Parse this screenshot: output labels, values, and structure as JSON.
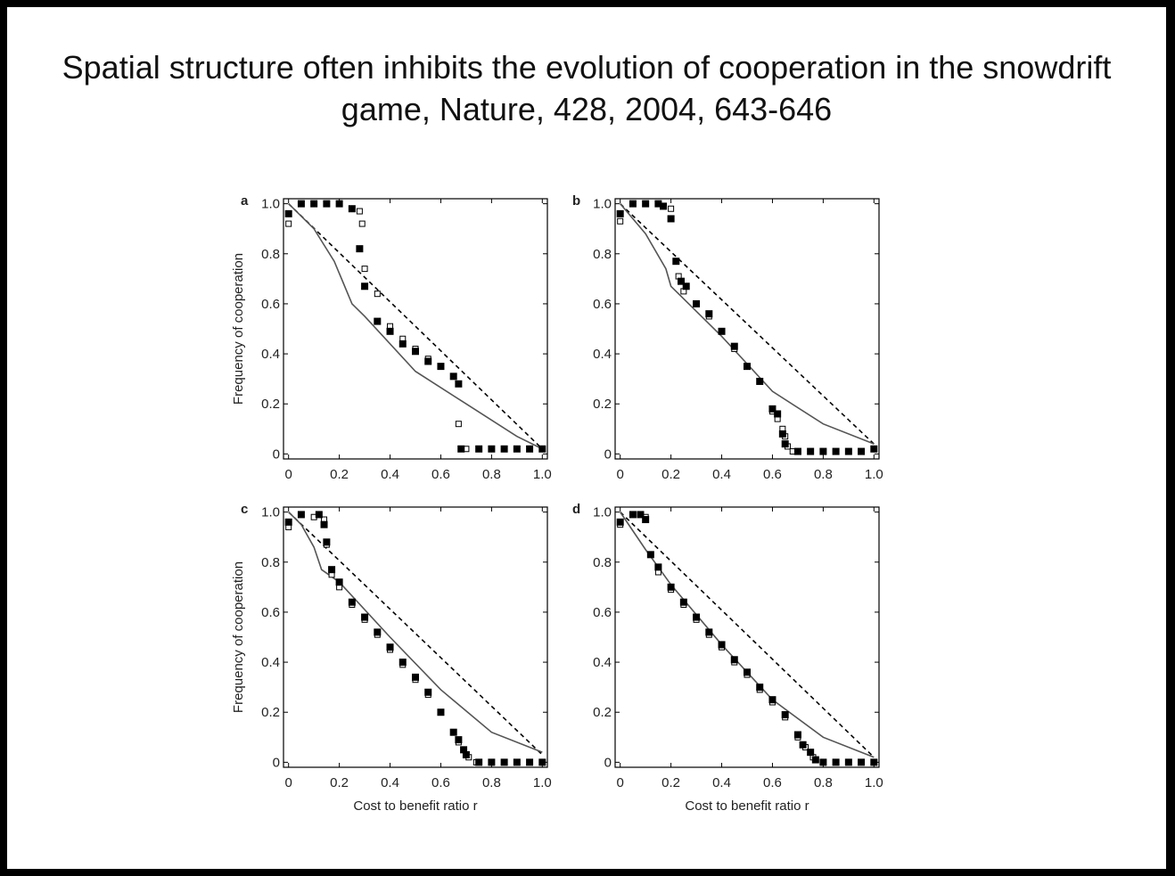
{
  "title": "Spatial structure often inhibits the evolution of cooperation in the snowdrift game, Nature, 428, 2004, 643-646",
  "chart_data": [
    {
      "type": "scatter",
      "label": "a",
      "ylabel": "Frequency of cooperation",
      "xlim": [
        -0.02,
        1.02
      ],
      "ylim": [
        -0.02,
        1.02
      ],
      "xticks": [
        0,
        0.2,
        0.4,
        0.6,
        0.8,
        {
          "value": 1,
          "label": "1.0"
        }
      ],
      "yticks": [
        0,
        0.2,
        0.4,
        0.6,
        0.8,
        {
          "value": 1,
          "label": "1.0"
        }
      ],
      "series": [
        {
          "color": "#000000",
          "style": "dashed",
          "x": [
            0,
            1
          ],
          "values": [
            1,
            0.02
          ]
        },
        {
          "color": "#555555",
          "style": "solid",
          "x": [
            0,
            0.1,
            0.18,
            0.25,
            0.3,
            0.5,
            0.7,
            0.9,
            1
          ],
          "values": [
            1,
            0.9,
            0.77,
            0.6,
            0.55,
            0.33,
            0.2,
            0.07,
            0.02
          ]
        },
        {
          "color": "#000000",
          "style": "open",
          "x": [
            0,
            0.05,
            0.1,
            0.15,
            0.2,
            0.25,
            0.28,
            0.29,
            0.3,
            0.35,
            0.4,
            0.45,
            0.5,
            0.55,
            0.6,
            0.65,
            0.67,
            0.7,
            0.75,
            0.8,
            0.85,
            0.9,
            0.95,
            1
          ],
          "values": [
            0.92,
            1,
            1,
            1,
            1,
            0.98,
            0.97,
            0.92,
            0.74,
            0.64,
            0.51,
            0.46,
            0.42,
            0.38,
            0.35,
            0.31,
            0.12,
            0.02,
            0.02,
            0.02,
            0.02,
            0.02,
            0.02,
            0.02
          ]
        },
        {
          "color": "#000000",
          "style": "filled",
          "x": [
            0,
            0.05,
            0.1,
            0.15,
            0.2,
            0.25,
            0.28,
            0.3,
            0.35,
            0.4,
            0.45,
            0.5,
            0.55,
            0.6,
            0.65,
            0.67,
            0.68,
            0.75,
            0.8,
            0.85,
            0.9,
            0.95,
            1
          ],
          "values": [
            0.96,
            1,
            1,
            1,
            1,
            0.98,
            0.82,
            0.67,
            0.53,
            0.49,
            0.44,
            0.41,
            0.37,
            0.35,
            0.31,
            0.28,
            0.02,
            0.02,
            0.02,
            0.02,
            0.02,
            0.02,
            0.02
          ]
        }
      ]
    },
    {
      "type": "scatter",
      "label": "b",
      "xlim": [
        -0.02,
        1.02
      ],
      "ylim": [
        -0.02,
        1.02
      ],
      "xticks": [
        0,
        0.2,
        0.4,
        0.6,
        0.8,
        {
          "value": 1,
          "label": "1.0"
        }
      ],
      "yticks": [
        0,
        0.2,
        0.4,
        0.6,
        0.8,
        {
          "value": 1,
          "label": "1.0"
        }
      ],
      "series": [
        {
          "color": "#000000",
          "style": "dashed",
          "x": [
            0,
            1
          ],
          "values": [
            1,
            0.04
          ]
        },
        {
          "color": "#555555",
          "style": "solid",
          "x": [
            0,
            0.1,
            0.18,
            0.2,
            0.4,
            0.6,
            0.8,
            1
          ],
          "values": [
            1,
            0.88,
            0.74,
            0.67,
            0.47,
            0.25,
            0.12,
            0.04
          ]
        },
        {
          "color": "#000000",
          "style": "open",
          "x": [
            0,
            0.05,
            0.1,
            0.15,
            0.2,
            0.23,
            0.25,
            0.3,
            0.35,
            0.4,
            0.45,
            0.5,
            0.55,
            0.6,
            0.62,
            0.64,
            0.65,
            0.66,
            0.68
          ],
          "values": [
            0.93,
            1,
            1,
            1,
            0.98,
            0.71,
            0.65,
            0.6,
            0.55,
            0.49,
            0.42,
            0.35,
            0.29,
            0.17,
            0.14,
            0.1,
            0.07,
            0.03,
            0.01
          ]
        },
        {
          "color": "#000000",
          "style": "filled",
          "x": [
            0,
            0.05,
            0.1,
            0.15,
            0.17,
            0.2,
            0.22,
            0.24,
            0.26,
            0.3,
            0.35,
            0.4,
            0.45,
            0.5,
            0.55,
            0.6,
            0.62,
            0.64,
            0.65,
            0.7,
            0.75,
            0.8,
            0.85,
            0.9,
            0.95,
            1
          ],
          "values": [
            0.96,
            1,
            1,
            1,
            0.99,
            0.94,
            0.77,
            0.69,
            0.67,
            0.6,
            0.56,
            0.49,
            0.43,
            0.35,
            0.29,
            0.18,
            0.16,
            0.08,
            0.04,
            0.01,
            0.01,
            0.01,
            0.01,
            0.01,
            0.01,
            0.02
          ]
        }
      ]
    },
    {
      "type": "scatter",
      "label": "c",
      "ylabel": "Frequency of cooperation",
      "xlabel": "Cost to benefit ratio r",
      "xlim": [
        -0.02,
        1.02
      ],
      "ylim": [
        -0.02,
        1.02
      ],
      "xticks": [
        0,
        0.2,
        0.4,
        0.6,
        0.8,
        {
          "value": 1,
          "label": "1.0"
        }
      ],
      "yticks": [
        0,
        0.2,
        0.4,
        0.6,
        0.8,
        {
          "value": 1,
          "label": "1.0"
        }
      ],
      "series": [
        {
          "color": "#000000",
          "style": "dashed",
          "x": [
            0,
            1
          ],
          "values": [
            1,
            0.03
          ]
        },
        {
          "color": "#555555",
          "style": "solid",
          "x": [
            0,
            0.05,
            0.1,
            0.13,
            0.2,
            0.4,
            0.6,
            0.8,
            1
          ],
          "values": [
            1,
            0.95,
            0.86,
            0.77,
            0.72,
            0.5,
            0.29,
            0.12,
            0.04
          ]
        },
        {
          "color": "#000000",
          "style": "open",
          "x": [
            0,
            0.05,
            0.1,
            0.14,
            0.15,
            0.17,
            0.2,
            0.25,
            0.3,
            0.35,
            0.4,
            0.45,
            0.5,
            0.55,
            0.6,
            0.65,
            0.67,
            0.69,
            0.71,
            0.74,
            1
          ],
          "values": [
            0.94,
            0.99,
            0.98,
            0.97,
            0.87,
            0.75,
            0.7,
            0.63,
            0.57,
            0.51,
            0.45,
            0.39,
            0.33,
            0.27,
            0.2,
            0.12,
            0.08,
            0.05,
            0.02,
            0,
            0
          ]
        },
        {
          "color": "#000000",
          "style": "filled",
          "x": [
            0,
            0.05,
            0.12,
            0.14,
            0.15,
            0.17,
            0.2,
            0.25,
            0.3,
            0.35,
            0.4,
            0.45,
            0.5,
            0.55,
            0.6,
            0.65,
            0.67,
            0.69,
            0.7,
            0.75,
            0.8,
            0.85,
            0.9,
            0.95,
            1
          ],
          "values": [
            0.96,
            0.99,
            0.99,
            0.95,
            0.88,
            0.77,
            0.72,
            0.64,
            0.58,
            0.52,
            0.46,
            0.4,
            0.34,
            0.28,
            0.2,
            0.12,
            0.09,
            0.05,
            0.03,
            0,
            0,
            0,
            0,
            0,
            0
          ]
        }
      ]
    },
    {
      "type": "scatter",
      "label": "d",
      "xlabel": "Cost to benefit ratio r",
      "xlim": [
        -0.02,
        1.02
      ],
      "ylim": [
        -0.02,
        1.02
      ],
      "xticks": [
        0,
        0.2,
        0.4,
        0.6,
        0.8,
        {
          "value": 1,
          "label": "1.0"
        }
      ],
      "yticks": [
        0,
        0.2,
        0.4,
        0.6,
        0.8,
        {
          "value": 1,
          "label": "1.0"
        }
      ],
      "series": [
        {
          "color": "#000000",
          "style": "dashed",
          "x": [
            0,
            1
          ],
          "values": [
            1,
            0.02
          ]
        },
        {
          "color": "#555555",
          "style": "solid",
          "x": [
            0,
            0.1,
            0.2,
            0.4,
            0.6,
            0.8,
            1
          ],
          "values": [
            1,
            0.85,
            0.71,
            0.47,
            0.25,
            0.1,
            0.02
          ]
        },
        {
          "color": "#000000",
          "style": "open",
          "x": [
            0,
            0.05,
            0.1,
            0.15,
            0.2,
            0.25,
            0.3,
            0.35,
            0.4,
            0.45,
            0.5,
            0.55,
            0.6,
            0.65,
            0.7,
            0.73,
            0.76,
            0.8,
            1
          ],
          "values": [
            0.95,
            0.99,
            0.98,
            0.76,
            0.69,
            0.63,
            0.57,
            0.51,
            0.46,
            0.4,
            0.35,
            0.29,
            0.24,
            0.18,
            0.1,
            0.06,
            0.02,
            0,
            0
          ]
        },
        {
          "color": "#000000",
          "style": "filled",
          "x": [
            0,
            0.05,
            0.08,
            0.1,
            0.12,
            0.15,
            0.2,
            0.25,
            0.3,
            0.35,
            0.4,
            0.45,
            0.5,
            0.55,
            0.6,
            0.65,
            0.7,
            0.72,
            0.75,
            0.77,
            0.8,
            0.85,
            0.9,
            0.95,
            1
          ],
          "values": [
            0.96,
            0.99,
            0.99,
            0.97,
            0.83,
            0.78,
            0.7,
            0.64,
            0.58,
            0.52,
            0.47,
            0.41,
            0.36,
            0.3,
            0.25,
            0.19,
            0.11,
            0.07,
            0.04,
            0.01,
            0,
            0,
            0,
            0,
            0
          ]
        }
      ]
    }
  ]
}
